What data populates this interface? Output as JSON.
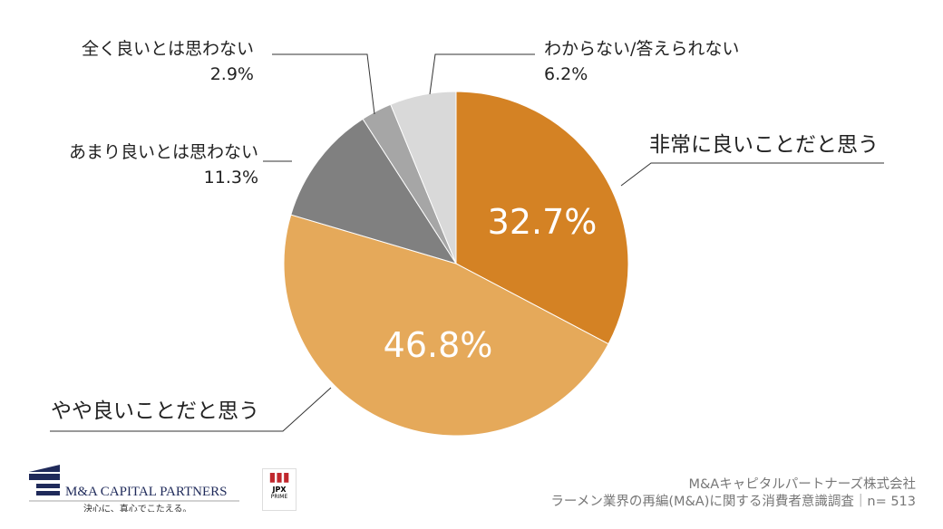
{
  "chart_data": {
    "type": "pie",
    "start": "top",
    "direction": "clockwise",
    "slices": [
      {
        "label": "非常に良いことだと思う",
        "value": 32.7,
        "display": "32.7%",
        "color": "#D48224"
      },
      {
        "label": "やや良いことだと思う",
        "value": 46.8,
        "display": "46.8%",
        "color": "#E5A95A"
      },
      {
        "label": "あまり良いとは思わない",
        "value": 11.3,
        "display": "11.3%",
        "color": "#808080"
      },
      {
        "label": "全く良いとは思わない",
        "value": 2.9,
        "display": "2.9%",
        "color": "#A6A6A6"
      },
      {
        "label": "わからない/答えられない",
        "value": 6.2,
        "display": "6.2%",
        "color": "#D9D9D9"
      }
    ]
  },
  "footer": {
    "company": "M&Aキャピタルパートナーズ株式会社",
    "survey": "ラーメン業界の再編(M&A)に関する消費者意識調査｜n= 513"
  },
  "logo": {
    "name": "M&A CAPITAL PARTNERS",
    "tagline": "決心に、真心でこたえる。",
    "badge": "JPX PRIME"
  }
}
